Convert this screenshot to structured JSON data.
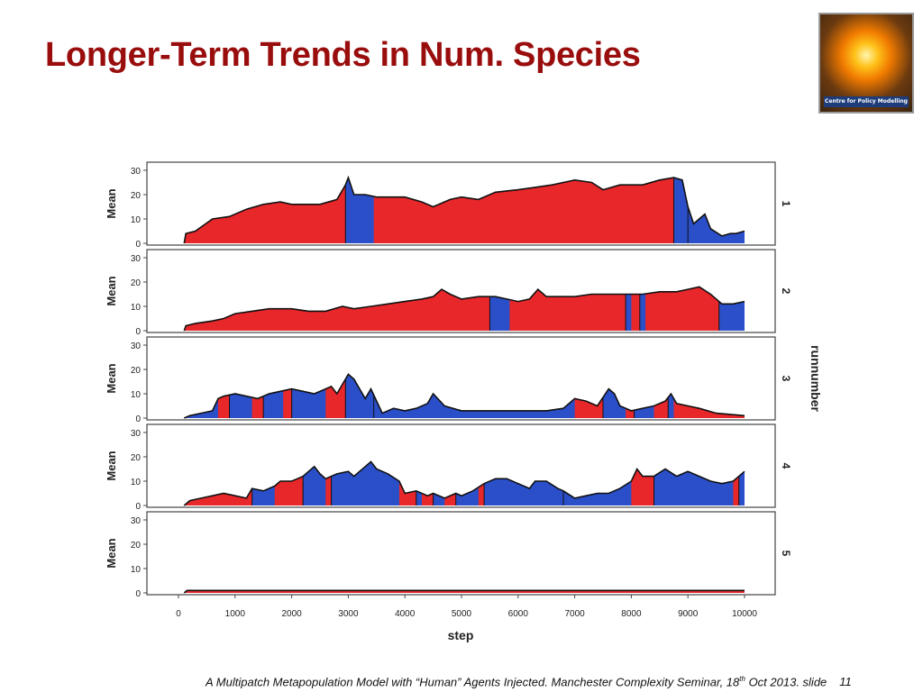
{
  "slide": {
    "title": "Longer-Term Trends in Num. Species",
    "logo_text": "Centre for Policy Modelling",
    "footer_before": "A Multipatch Metapopulation Model with “Human” Agents Injected. Manchester Complexity Seminar, 18",
    "footer_sup": "th",
    "footer_after": " Oct 2013.  slide",
    "slide_number": "11"
  },
  "colors": {
    "red": "#e8272b",
    "blue": "#2a4fc9",
    "title": "#990d0d",
    "edge": "#111111"
  },
  "chart_data": {
    "type": "area",
    "xlabel": "step",
    "ylabel": "Mean",
    "facet_label": "runnumber",
    "xlim": [
      0,
      10000
    ],
    "ylim": [
      0,
      30
    ],
    "x_ticks": [
      0,
      1000,
      2000,
      3000,
      4000,
      5000,
      6000,
      7000,
      8000,
      9000,
      10000
    ],
    "y_ticks": [
      0,
      10,
      20,
      30
    ],
    "panels": [
      {
        "run": "1",
        "points": [
          [
            100,
            0
          ],
          [
            130,
            4
          ],
          [
            300,
            5
          ],
          [
            600,
            10
          ],
          [
            900,
            11
          ],
          [
            1200,
            14
          ],
          [
            1500,
            16
          ],
          [
            1800,
            17
          ],
          [
            2000,
            16
          ],
          [
            2200,
            16
          ],
          [
            2500,
            16
          ],
          [
            2800,
            18
          ],
          [
            2950,
            24
          ],
          [
            3000,
            27
          ],
          [
            3100,
            20
          ],
          [
            3300,
            20
          ],
          [
            3500,
            19
          ],
          [
            3800,
            19
          ],
          [
            4000,
            19
          ],
          [
            4300,
            17
          ],
          [
            4500,
            15
          ],
          [
            4800,
            18
          ],
          [
            5000,
            19
          ],
          [
            5300,
            18
          ],
          [
            5600,
            21
          ],
          [
            6000,
            22
          ],
          [
            6300,
            23
          ],
          [
            6600,
            24
          ],
          [
            6800,
            25
          ],
          [
            7000,
            26
          ],
          [
            7300,
            25
          ],
          [
            7500,
            22
          ],
          [
            7800,
            24
          ],
          [
            8200,
            24
          ],
          [
            8500,
            26
          ],
          [
            8750,
            27
          ],
          [
            8900,
            26
          ],
          [
            9000,
            15
          ],
          [
            9100,
            8
          ],
          [
            9300,
            12
          ],
          [
            9400,
            6
          ],
          [
            9600,
            3
          ],
          [
            9750,
            4
          ],
          [
            9850,
            4
          ],
          [
            10000,
            5
          ]
        ],
        "blue": [
          [
            2950,
            3450
          ],
          [
            8750,
            9000
          ],
          [
            9000,
            10000
          ]
        ]
      },
      {
        "run": "2",
        "points": [
          [
            100,
            0
          ],
          [
            130,
            2
          ],
          [
            300,
            3
          ],
          [
            600,
            4
          ],
          [
            800,
            5
          ],
          [
            1000,
            7
          ],
          [
            1300,
            8
          ],
          [
            1600,
            9
          ],
          [
            2000,
            9
          ],
          [
            2300,
            8
          ],
          [
            2600,
            8
          ],
          [
            2900,
            10
          ],
          [
            3100,
            9
          ],
          [
            3400,
            10
          ],
          [
            3700,
            11
          ],
          [
            4000,
            12
          ],
          [
            4300,
            13
          ],
          [
            4500,
            14
          ],
          [
            4650,
            17
          ],
          [
            4800,
            15
          ],
          [
            5000,
            13
          ],
          [
            5300,
            14
          ],
          [
            5600,
            14
          ],
          [
            5800,
            13
          ],
          [
            6000,
            12
          ],
          [
            6200,
            13
          ],
          [
            6350,
            17
          ],
          [
            6500,
            14
          ],
          [
            6800,
            14
          ],
          [
            7000,
            14
          ],
          [
            7300,
            15
          ],
          [
            7600,
            15
          ],
          [
            7900,
            15
          ],
          [
            8200,
            15
          ],
          [
            8500,
            16
          ],
          [
            8800,
            16
          ],
          [
            9000,
            17
          ],
          [
            9200,
            18
          ],
          [
            9400,
            15
          ],
          [
            9600,
            11
          ],
          [
            9800,
            11
          ],
          [
            10000,
            12
          ]
        ],
        "blue": [
          [
            5500,
            5850
          ],
          [
            7900,
            8000
          ],
          [
            8150,
            8250
          ],
          [
            9550,
            10000
          ]
        ]
      },
      {
        "run": "3",
        "points": [
          [
            100,
            0
          ],
          [
            200,
            1
          ],
          [
            400,
            2
          ],
          [
            600,
            3
          ],
          [
            700,
            8
          ],
          [
            800,
            9
          ],
          [
            1000,
            10
          ],
          [
            1200,
            9
          ],
          [
            1400,
            8
          ],
          [
            1600,
            10
          ],
          [
            1800,
            11
          ],
          [
            2000,
            12
          ],
          [
            2200,
            11
          ],
          [
            2400,
            10
          ],
          [
            2600,
            12
          ],
          [
            2700,
            13
          ],
          [
            2800,
            10
          ],
          [
            3000,
            18
          ],
          [
            3100,
            16
          ],
          [
            3300,
            8
          ],
          [
            3400,
            12
          ],
          [
            3500,
            7
          ],
          [
            3600,
            2
          ],
          [
            3800,
            4
          ],
          [
            4000,
            3
          ],
          [
            4200,
            4
          ],
          [
            4400,
            6
          ],
          [
            4500,
            10
          ],
          [
            4700,
            5
          ],
          [
            5000,
            3
          ],
          [
            5500,
            3
          ],
          [
            6000,
            3
          ],
          [
            6500,
            3
          ],
          [
            6800,
            4
          ],
          [
            7000,
            8
          ],
          [
            7200,
            7
          ],
          [
            7400,
            5
          ],
          [
            7600,
            12
          ],
          [
            7700,
            10
          ],
          [
            7800,
            5
          ],
          [
            8000,
            3
          ],
          [
            8200,
            4
          ],
          [
            8400,
            5
          ],
          [
            8600,
            7
          ],
          [
            8700,
            10
          ],
          [
            8800,
            6
          ],
          [
            9000,
            5
          ],
          [
            9200,
            4
          ],
          [
            9500,
            2
          ],
          [
            10000,
            1
          ]
        ],
        "blue": [
          [
            100,
            700
          ],
          [
            900,
            1300
          ],
          [
            1500,
            1850
          ],
          [
            2000,
            2600
          ],
          [
            2950,
            3450
          ],
          [
            3450,
            7000
          ],
          [
            7500,
            7900
          ],
          [
            8050,
            8400
          ],
          [
            8650,
            8750
          ]
        ]
      },
      {
        "run": "4",
        "points": [
          [
            100,
            0
          ],
          [
            200,
            2
          ],
          [
            400,
            3
          ],
          [
            600,
            4
          ],
          [
            800,
            5
          ],
          [
            1000,
            4
          ],
          [
            1200,
            3
          ],
          [
            1300,
            7
          ],
          [
            1500,
            6
          ],
          [
            1700,
            8
          ],
          [
            1800,
            10
          ],
          [
            2000,
            10
          ],
          [
            2100,
            11
          ],
          [
            2200,
            12
          ],
          [
            2300,
            14
          ],
          [
            2400,
            16
          ],
          [
            2500,
            13
          ],
          [
            2600,
            11
          ],
          [
            2800,
            13
          ],
          [
            3000,
            14
          ],
          [
            3100,
            12
          ],
          [
            3300,
            16
          ],
          [
            3400,
            18
          ],
          [
            3500,
            15
          ],
          [
            3700,
            13
          ],
          [
            3900,
            10
          ],
          [
            4000,
            5
          ],
          [
            4200,
            6
          ],
          [
            4400,
            4
          ],
          [
            4500,
            5
          ],
          [
            4700,
            3
          ],
          [
            4900,
            5
          ],
          [
            5000,
            4
          ],
          [
            5200,
            6
          ],
          [
            5400,
            9
          ],
          [
            5600,
            11
          ],
          [
            5800,
            11
          ],
          [
            6000,
            9
          ],
          [
            6200,
            7
          ],
          [
            6300,
            10
          ],
          [
            6500,
            10
          ],
          [
            6700,
            7
          ],
          [
            6800,
            6
          ],
          [
            7000,
            3
          ],
          [
            7200,
            4
          ],
          [
            7400,
            5
          ],
          [
            7600,
            5
          ],
          [
            7800,
            7
          ],
          [
            8000,
            10
          ],
          [
            8100,
            15
          ],
          [
            8200,
            12
          ],
          [
            8400,
            12
          ],
          [
            8600,
            15
          ],
          [
            8800,
            12
          ],
          [
            9000,
            14
          ],
          [
            9200,
            12
          ],
          [
            9400,
            10
          ],
          [
            9600,
            9
          ],
          [
            9800,
            10
          ],
          [
            10000,
            14
          ]
        ],
        "blue": [
          [
            1300,
            1700
          ],
          [
            2200,
            2600
          ],
          [
            2700,
            3900
          ],
          [
            4200,
            4300
          ],
          [
            4500,
            4700
          ],
          [
            4900,
            5300
          ],
          [
            5400,
            6800
          ],
          [
            6800,
            8000
          ],
          [
            8400,
            9800
          ],
          [
            9900,
            10000
          ]
        ]
      },
      {
        "run": "5",
        "points": [
          [
            100,
            0
          ],
          [
            150,
            1
          ],
          [
            300,
            1
          ],
          [
            500,
            1
          ],
          [
            700,
            1
          ],
          [
            900,
            1
          ],
          [
            1100,
            1
          ],
          [
            1300,
            1
          ],
          [
            1500,
            1
          ],
          [
            1700,
            1
          ],
          [
            1900,
            1
          ],
          [
            2100,
            1
          ],
          [
            2300,
            1
          ],
          [
            2500,
            1
          ],
          [
            2700,
            1
          ],
          [
            2900,
            1
          ],
          [
            3100,
            1
          ],
          [
            3300,
            1
          ],
          [
            3500,
            1
          ],
          [
            3700,
            1
          ],
          [
            3900,
            1
          ],
          [
            4100,
            1
          ],
          [
            4300,
            1
          ],
          [
            4500,
            1
          ],
          [
            4700,
            1
          ],
          [
            4900,
            1
          ],
          [
            5100,
            1
          ],
          [
            5300,
            1
          ],
          [
            5500,
            1
          ],
          [
            5700,
            1
          ],
          [
            5900,
            1
          ],
          [
            6100,
            1
          ],
          [
            6300,
            1
          ],
          [
            6500,
            1
          ],
          [
            6700,
            1
          ],
          [
            6900,
            1
          ],
          [
            7100,
            1
          ],
          [
            7300,
            1
          ],
          [
            7500,
            1
          ],
          [
            7700,
            1
          ],
          [
            7900,
            1
          ],
          [
            8100,
            1
          ],
          [
            8300,
            1
          ],
          [
            8500,
            1
          ],
          [
            8700,
            1
          ],
          [
            8900,
            1
          ],
          [
            9100,
            1
          ],
          [
            9300,
            1
          ],
          [
            9500,
            1
          ],
          [
            9700,
            1
          ],
          [
            9900,
            1
          ],
          [
            10000,
            1
          ]
        ],
        "blue": []
      }
    ]
  }
}
